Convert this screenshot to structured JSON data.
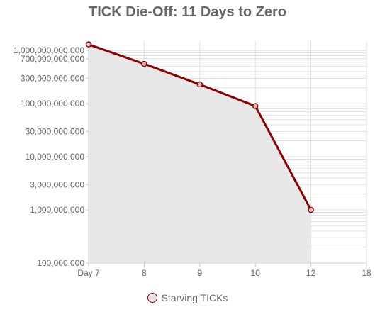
{
  "chart_data": {
    "type": "line",
    "title": "TICK Die-Off: 11 Days to Zero",
    "xlabel": "",
    "ylabel": "",
    "x_ticks": [
      "Day 7",
      "8",
      "9",
      "10",
      "12",
      "18"
    ],
    "y_ticks": [
      "1,000,000,000,000",
      "700,000,000,000",
      "300,000,000,000",
      "100,000,000,000",
      "30,000,000,000",
      "10,000,000,000",
      "3,000,000,000",
      "1,000,000,000",
      "100,000,000"
    ],
    "y_scale": "log",
    "ylim": [
      100000000,
      1500000000000
    ],
    "series": [
      {
        "name": "Starving TICKs",
        "x": [
          "Day 7",
          "8",
          "9",
          "10",
          "12"
        ],
        "values": [
          1300000000000,
          560000000000,
          230000000000,
          90000000000,
          1000000000
        ]
      }
    ],
    "colors": {
      "line": "#8b0000",
      "fill": "#e5e5e5",
      "grid": "#e0e0e0"
    },
    "grid": true,
    "legend_position": "bottom"
  }
}
